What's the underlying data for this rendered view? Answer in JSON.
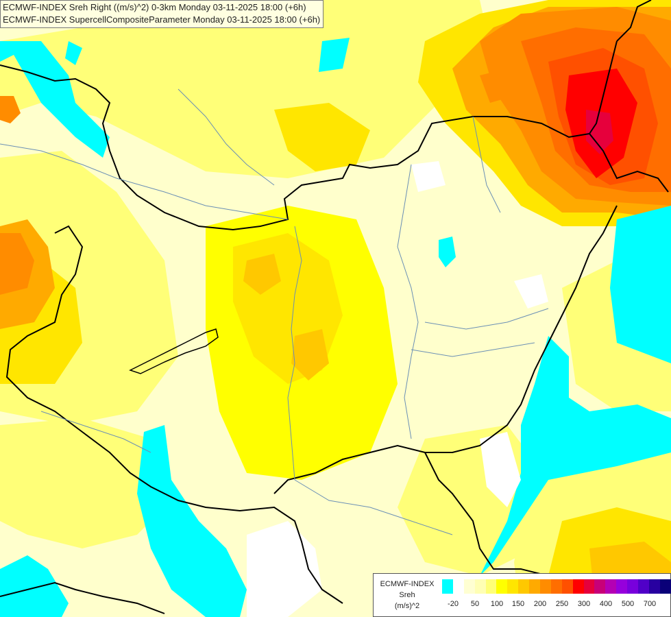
{
  "titles": [
    "ECMWF-INDEX Sreh Right ((m/s)^2) 0-3km Monday 03-11-2025 18:00 (+6h)",
    "ECMWF-INDEX SupercellCompositeParameter Monday 03-11-2025 18:00 (+6h)"
  ],
  "legend": {
    "source": "ECMWF-INDEX",
    "variable": "Sreh",
    "unit": "(m/s)^2",
    "colors": [
      "#00ffff",
      "#ffffff",
      "#ffffd2",
      "#ffffb4",
      "#ffff78",
      "#ffff00",
      "#ffe600",
      "#ffc800",
      "#ffaa00",
      "#ff8c00",
      "#ff6e00",
      "#ff5000",
      "#ff0000",
      "#e6003c",
      "#c80078",
      "#b400b4",
      "#9600dc",
      "#7800dc",
      "#5000c8",
      "#2800a0",
      "#0a0078"
    ],
    "ticks": [
      "-20",
      "50",
      "100",
      "150",
      "200",
      "250",
      "300",
      "400",
      "500",
      "700"
    ]
  },
  "map_colors": {
    "background": "#ffffcc",
    "cyan": "#00ffff",
    "white": "#ffffff",
    "pale_yellow": "#ffffb4",
    "light_yellow": "#ffff78",
    "yellow": "#ffff00",
    "gold": "#ffe600",
    "amber": "#ffc800",
    "orange": "#ffaa00",
    "dark_orange": "#ff8c00",
    "orange_red": "#ff6e00",
    "red_orange": "#ff5000",
    "red": "#ff0000",
    "crimson": "#e6003c",
    "border_line": "#000000",
    "river_line": "#6a8fb5"
  }
}
